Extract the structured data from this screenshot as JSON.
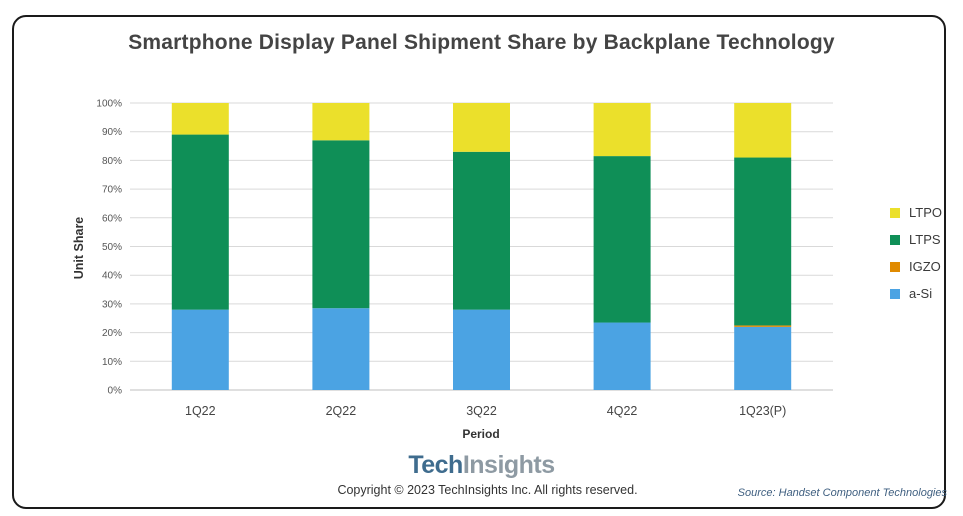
{
  "title": "Smartphone Display Panel Shipment Share by Backplane Technology",
  "brand": {
    "part1": "Tech",
    "part2": "Insights"
  },
  "copyright": "Copyright © 2023 TechInsights Inc.  All rights reserved.",
  "source": "Source: Handset Component Technologies",
  "colors": {
    "a-Si": "#4ba3e3",
    "IGZO": "#e08a00",
    "LTPS": "#0f8f57",
    "LTPO": "#ebe02b"
  },
  "chart_data": {
    "type": "bar",
    "stacked": true,
    "title": "Smartphone Display Panel Shipment Share by Backplane Technology",
    "xlabel": "Period",
    "ylabel": "Unit Share",
    "ylim": [
      0,
      100
    ],
    "yticks": [
      "0%",
      "10%",
      "20%",
      "30%",
      "40%",
      "50%",
      "60%",
      "70%",
      "80%",
      "90%",
      "100%"
    ],
    "grid": true,
    "legend_position": "right",
    "categories": [
      "1Q22",
      "2Q22",
      "3Q22",
      "4Q22",
      "1Q23(P)"
    ],
    "series": [
      {
        "name": "a-Si",
        "values": [
          28,
          28.5,
          28,
          23.5,
          22
        ]
      },
      {
        "name": "IGZO",
        "values": [
          0,
          0,
          0,
          0,
          0.5
        ]
      },
      {
        "name": "LTPS",
        "values": [
          61,
          58.5,
          55,
          58,
          58.5
        ]
      },
      {
        "name": "LTPO",
        "values": [
          11,
          13,
          17,
          18.5,
          19
        ]
      }
    ],
    "legend": [
      "LTPO",
      "LTPS",
      "IGZO",
      "a-Si"
    ]
  }
}
